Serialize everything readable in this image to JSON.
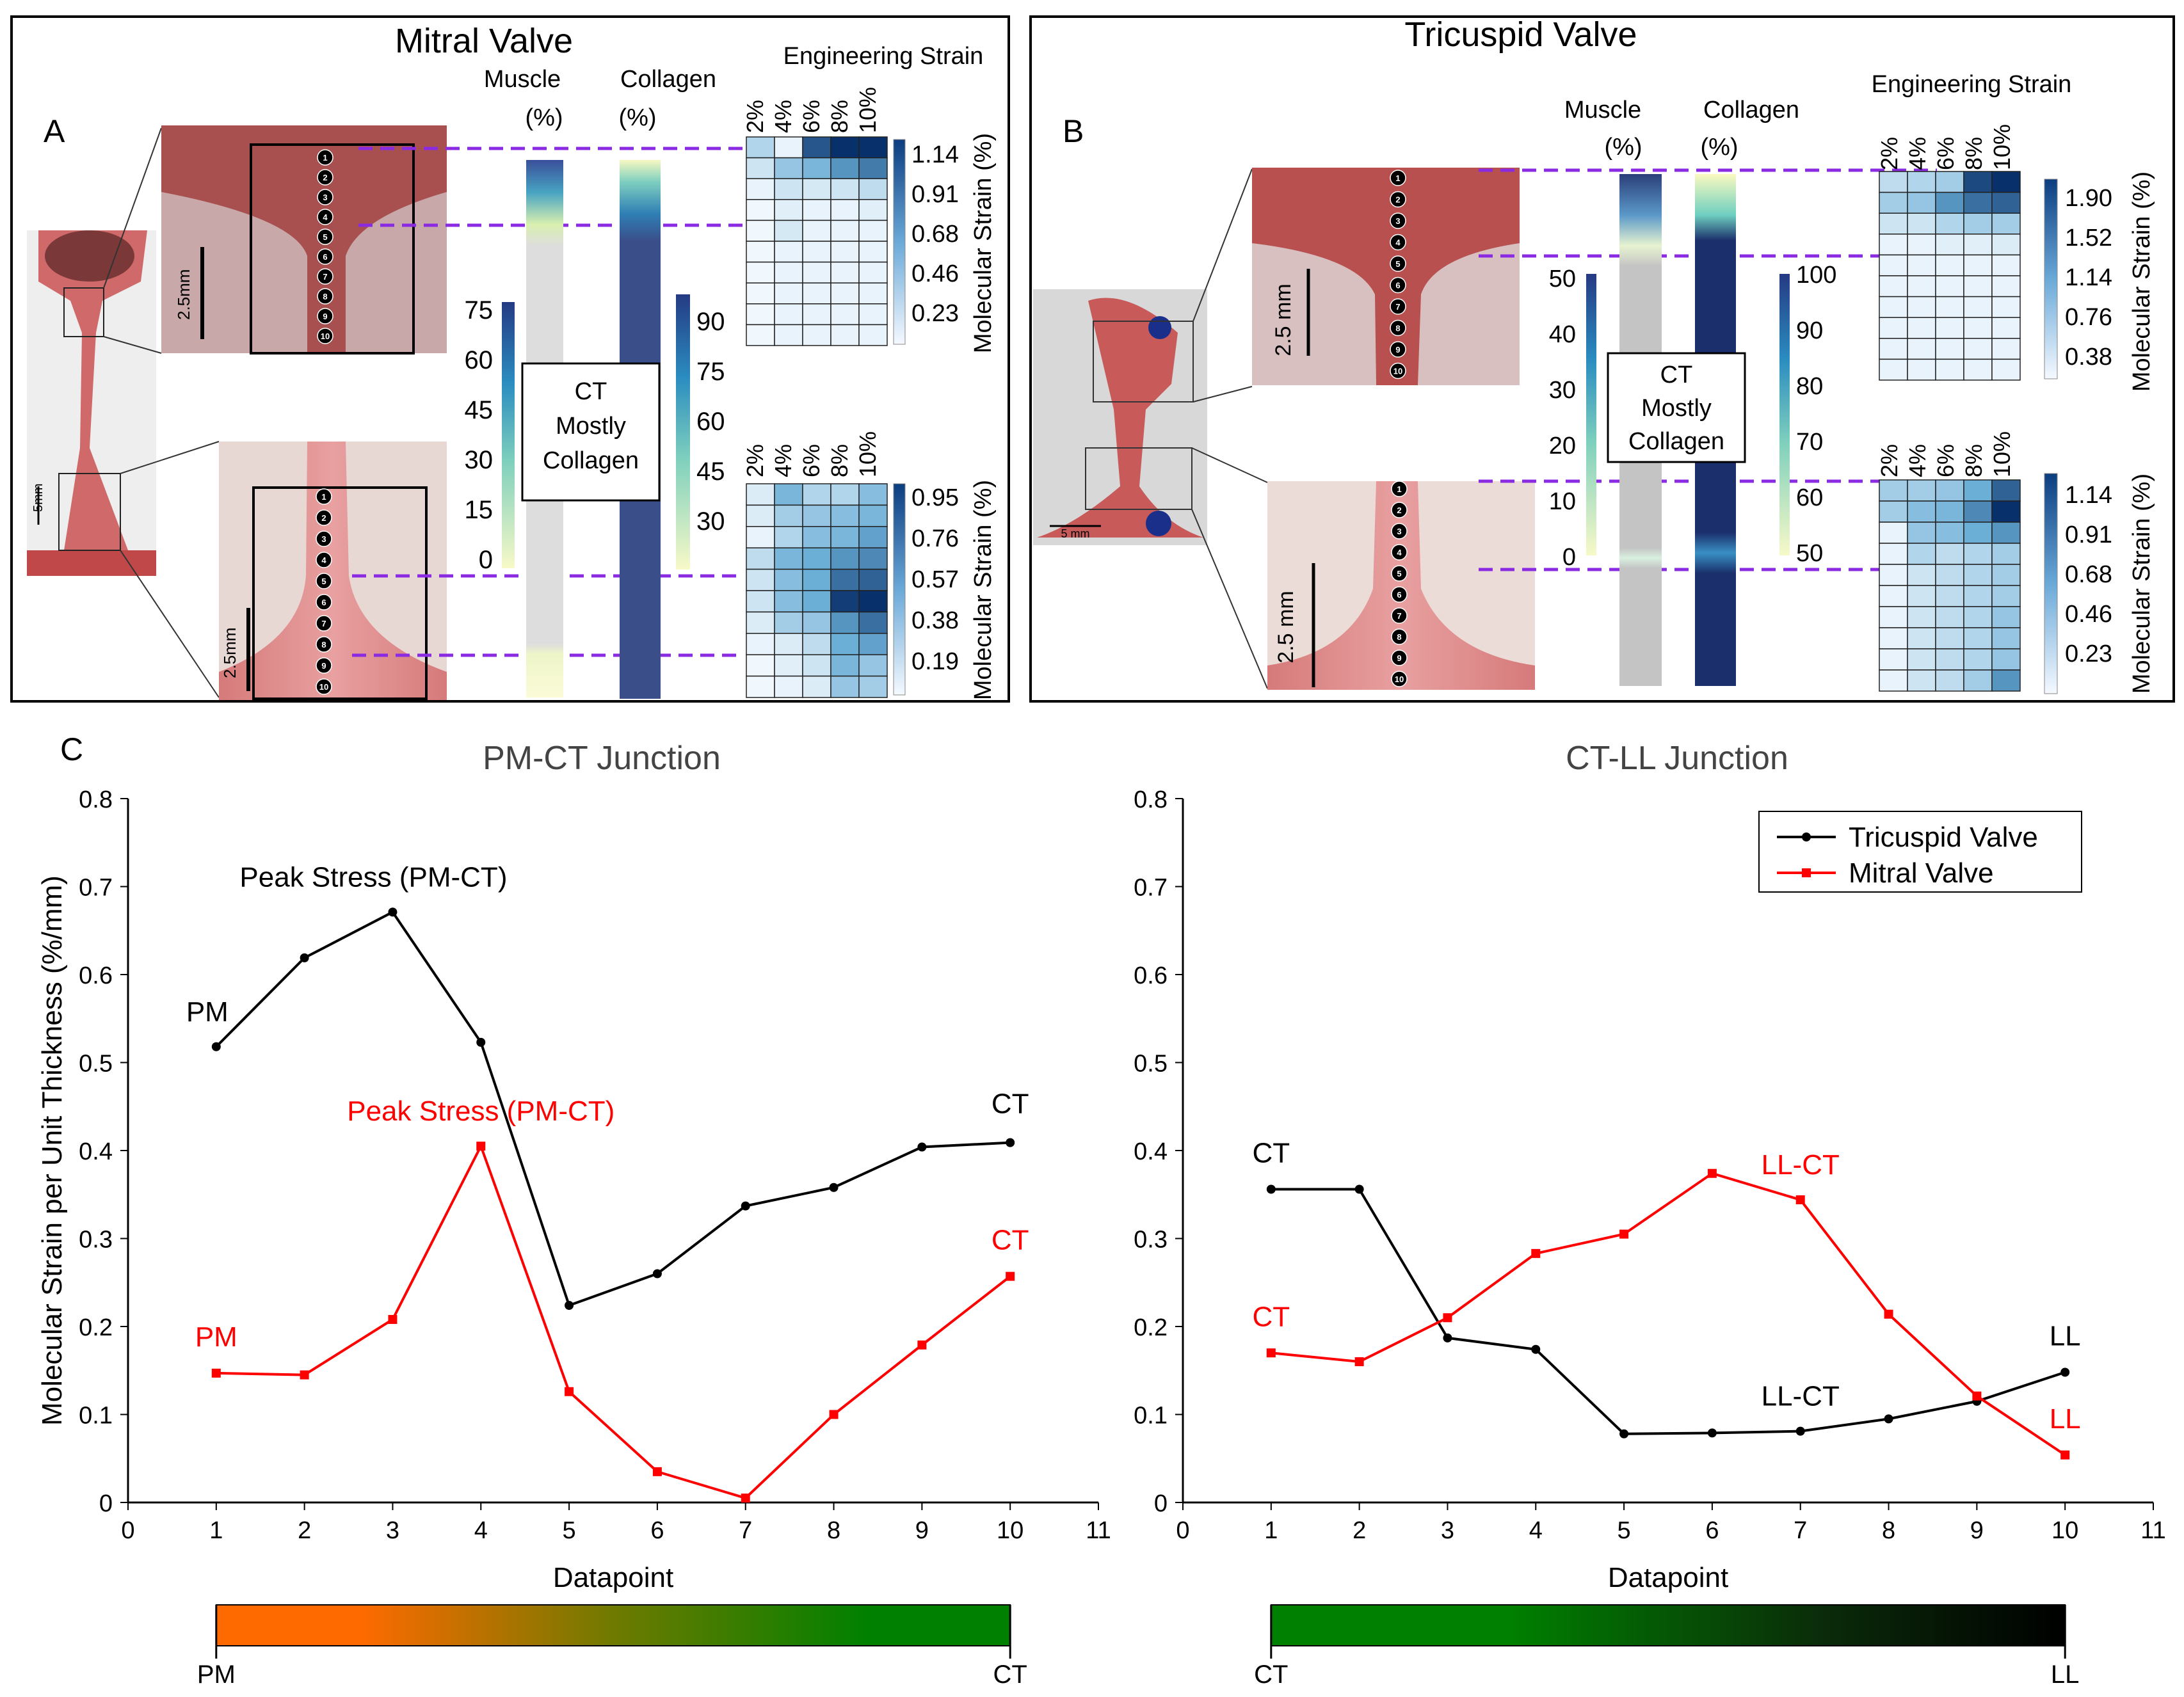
{
  "panels": {
    "mitral": {
      "letter": "A",
      "title": "Mitral Valve",
      "muscle_label": [
        "Muscle",
        "(%)"
      ],
      "collagen_label": [
        "Collagen",
        "(%)"
      ],
      "eng_strain_label": "Engineering Strain",
      "strain_cols": [
        "2%",
        "4%",
        "6%",
        "8%",
        "10%"
      ],
      "mol_strain_label": "Molecular Strain (%)",
      "scale_photo": "5mm",
      "scale_zoom": "2.5mm",
      "ct_box": [
        "CT",
        "Mostly",
        "Collagen"
      ],
      "muscle_ticks": [
        "75",
        "60",
        "45",
        "30",
        "15",
        "0"
      ],
      "collagen_ticks": [
        "90",
        "75",
        "60",
        "45",
        "30"
      ],
      "top_strain_ticks": [
        "1.14",
        "0.91",
        "0.68",
        "0.46",
        "0.23"
      ],
      "bottom_strain_ticks": [
        "0.95",
        "0.76",
        "0.57",
        "0.38",
        "0.19"
      ],
      "markers": [
        "1",
        "2",
        "3",
        "4",
        "5",
        "6",
        "7",
        "8",
        "9",
        "10"
      ],
      "top_heatmap": [
        [
          0.25,
          0.05,
          0.85,
          1.0,
          1.0
        ],
        [
          0.15,
          0.35,
          0.45,
          0.6,
          0.7
        ],
        [
          0.05,
          0.15,
          0.12,
          0.15,
          0.2
        ],
        [
          0.02,
          0.08,
          0.05,
          0.05,
          0.08
        ],
        [
          0.02,
          0.12,
          0.05,
          0.05,
          0.05
        ],
        [
          0.02,
          0.05,
          0.05,
          0.05,
          0.05
        ],
        [
          0.02,
          0.05,
          0.05,
          0.05,
          0.05
        ],
        [
          0.02,
          0.05,
          0.05,
          0.05,
          0.05
        ],
        [
          0.02,
          0.05,
          0.05,
          0.05,
          0.05
        ],
        [
          0.02,
          0.05,
          0.05,
          0.05,
          0.05
        ]
      ],
      "bottom_heatmap": [
        [
          0.1,
          0.45,
          0.25,
          0.25,
          0.4
        ],
        [
          0.1,
          0.3,
          0.35,
          0.4,
          0.45
        ],
        [
          0.05,
          0.25,
          0.4,
          0.45,
          0.55
        ],
        [
          0.2,
          0.45,
          0.5,
          0.6,
          0.65
        ],
        [
          0.15,
          0.4,
          0.5,
          0.75,
          0.8
        ],
        [
          0.15,
          0.4,
          0.5,
          0.95,
          1.0
        ],
        [
          0.1,
          0.3,
          0.35,
          0.6,
          0.75
        ],
        [
          0.05,
          0.1,
          0.2,
          0.5,
          0.55
        ],
        [
          0.02,
          0.08,
          0.15,
          0.45,
          0.35
        ],
        [
          0.02,
          0.05,
          0.1,
          0.35,
          0.3
        ]
      ]
    },
    "tricuspid": {
      "letter": "B",
      "title": "Tricuspid Valve",
      "muscle_label": [
        "Muscle",
        "(%)"
      ],
      "collagen_label": [
        "Collagen",
        "(%)"
      ],
      "eng_strain_label": "Engineering Strain",
      "strain_cols": [
        "2%",
        "4%",
        "6%",
        "8%",
        "10%"
      ],
      "mol_strain_label": "Molecular Strain (%)",
      "scale_photo": "5 mm",
      "scale_zoom": "2.5 mm",
      "ct_box": [
        "CT",
        "Mostly",
        "Collagen"
      ],
      "muscle_ticks": [
        "50",
        "40",
        "30",
        "20",
        "10",
        "0"
      ],
      "collagen_ticks": [
        "100",
        "90",
        "80",
        "70",
        "60",
        "50"
      ],
      "top_strain_ticks": [
        "1.90",
        "1.52",
        "1.14",
        "0.76",
        "0.38"
      ],
      "bottom_strain_ticks": [
        "1.14",
        "0.91",
        "0.68",
        "0.46",
        "0.23"
      ],
      "markers": [
        "1",
        "2",
        "3",
        "4",
        "5",
        "6",
        "7",
        "8",
        "9",
        "10"
      ],
      "top_heatmap": [
        [
          0.2,
          0.25,
          0.3,
          0.9,
          1.0
        ],
        [
          0.3,
          0.35,
          0.6,
          0.75,
          0.8
        ],
        [
          0.15,
          0.15,
          0.25,
          0.3,
          0.3
        ],
        [
          0.05,
          0.05,
          0.08,
          0.08,
          0.1
        ],
        [
          0.05,
          0.05,
          0.05,
          0.05,
          0.05
        ],
        [
          0.05,
          0.05,
          0.05,
          0.05,
          0.05
        ],
        [
          0.05,
          0.05,
          0.05,
          0.05,
          0.05
        ],
        [
          0.05,
          0.05,
          0.05,
          0.05,
          0.05
        ],
        [
          0.05,
          0.05,
          0.05,
          0.05,
          0.05
        ],
        [
          0.05,
          0.05,
          0.05,
          0.05,
          0.05
        ]
      ],
      "bottom_heatmap": [
        [
          0.3,
          0.3,
          0.35,
          0.5,
          0.8
        ],
        [
          0.3,
          0.4,
          0.45,
          0.65,
          1.0
        ],
        [
          0.05,
          0.35,
          0.4,
          0.5,
          0.6
        ],
        [
          0.05,
          0.25,
          0.2,
          0.25,
          0.3
        ],
        [
          0.05,
          0.15,
          0.2,
          0.25,
          0.3
        ],
        [
          0.05,
          0.15,
          0.2,
          0.25,
          0.3
        ],
        [
          0.05,
          0.15,
          0.2,
          0.25,
          0.35
        ],
        [
          0.05,
          0.15,
          0.2,
          0.25,
          0.35
        ],
        [
          0.05,
          0.15,
          0.2,
          0.25,
          0.35
        ],
        [
          0.05,
          0.15,
          0.2,
          0.3,
          0.6
        ]
      ]
    }
  },
  "panel_c_letter": "C",
  "colors": {
    "tricuspid": "#000000",
    "mitral": "#ff0000",
    "guide": "#8a2be2",
    "heat_dark": "#0b3d80",
    "collagen_dark": "#1a2f6b"
  },
  "chart_data": [
    {
      "type": "line",
      "title": "PM-CT Junction",
      "xlabel": "Datapoint",
      "ylabel": "Molecular Strain per Unit Thickness (%/mm)",
      "xlim": [
        0,
        11
      ],
      "ylim": [
        0,
        0.8
      ],
      "xticks": [
        "0",
        "1",
        "2",
        "3",
        "4",
        "5",
        "6",
        "7",
        "8",
        "9",
        "10",
        "11"
      ],
      "yticks": [
        "0",
        "0.1",
        "0.2",
        "0.3",
        "0.4",
        "0.5",
        "0.6",
        "0.7",
        "0.8"
      ],
      "x": [
        1,
        2,
        3,
        4,
        5,
        6,
        7,
        8,
        9,
        10
      ],
      "series": [
        {
          "name": "Tricuspid Valve",
          "values": [
            0.518,
            0.619,
            0.671,
            0.523,
            0.224,
            0.26,
            0.337,
            0.358,
            0.404,
            0.409
          ]
        },
        {
          "name": "Mitral Valve",
          "values": [
            0.147,
            0.145,
            0.208,
            0.405,
            0.126,
            0.035,
            0.005,
            0.1,
            0.179,
            0.257
          ]
        }
      ],
      "annotations": [
        {
          "text": "PM",
          "series": "Tricuspid Valve"
        },
        {
          "text": "Peak Stress (PM-CT)",
          "series": "Tricuspid Valve"
        },
        {
          "text": "CT",
          "series": "Tricuspid Valve"
        },
        {
          "text": "PM",
          "series": "Mitral Valve"
        },
        {
          "text": "Peak Stress (PM-CT)",
          "series": "Mitral Valve"
        },
        {
          "text": "CT",
          "series": "Mitral Valve"
        }
      ],
      "gradient_bar": {
        "left": "PM",
        "right": "CT",
        "start_color": "#ff6a00",
        "end_color": "#008000"
      }
    },
    {
      "type": "line",
      "title": "CT-LL Junction",
      "xlabel": "Datapoint",
      "ylabel": "",
      "xlim": [
        0,
        11
      ],
      "ylim": [
        0,
        0.8
      ],
      "xticks": [
        "0",
        "1",
        "2",
        "3",
        "4",
        "5",
        "6",
        "7",
        "8",
        "9",
        "10",
        "11"
      ],
      "yticks": [
        "0",
        "0.1",
        "0.2",
        "0.3",
        "0.4",
        "0.5",
        "0.6",
        "0.7",
        "0.8"
      ],
      "x": [
        1,
        2,
        3,
        4,
        5,
        6,
        7,
        8,
        9,
        10
      ],
      "series": [
        {
          "name": "Tricuspid Valve",
          "values": [
            0.356,
            0.356,
            0.187,
            0.174,
            0.078,
            0.079,
            0.081,
            0.095,
            0.115,
            0.148
          ]
        },
        {
          "name": "Mitral Valve",
          "values": [
            0.17,
            0.16,
            0.21,
            0.283,
            0.305,
            0.374,
            0.344,
            0.214,
            0.121,
            0.054
          ]
        }
      ],
      "annotations": [
        {
          "text": "CT",
          "series": "Tricuspid Valve"
        },
        {
          "text": "LL-CT",
          "series": "Tricuspid Valve"
        },
        {
          "text": "LL",
          "series": "Tricuspid Valve"
        },
        {
          "text": "CT",
          "series": "Mitral Valve"
        },
        {
          "text": "LL-CT",
          "series": "Mitral Valve"
        },
        {
          "text": "LL",
          "series": "Mitral Valve"
        }
      ],
      "legend": {
        "placement": "top-right",
        "entries": [
          "Tricuspid Valve",
          "Mitral Valve"
        ]
      },
      "gradient_bar": {
        "left": "CT",
        "right": "LL",
        "start_color": "#008000",
        "end_color": "#000000"
      }
    }
  ]
}
